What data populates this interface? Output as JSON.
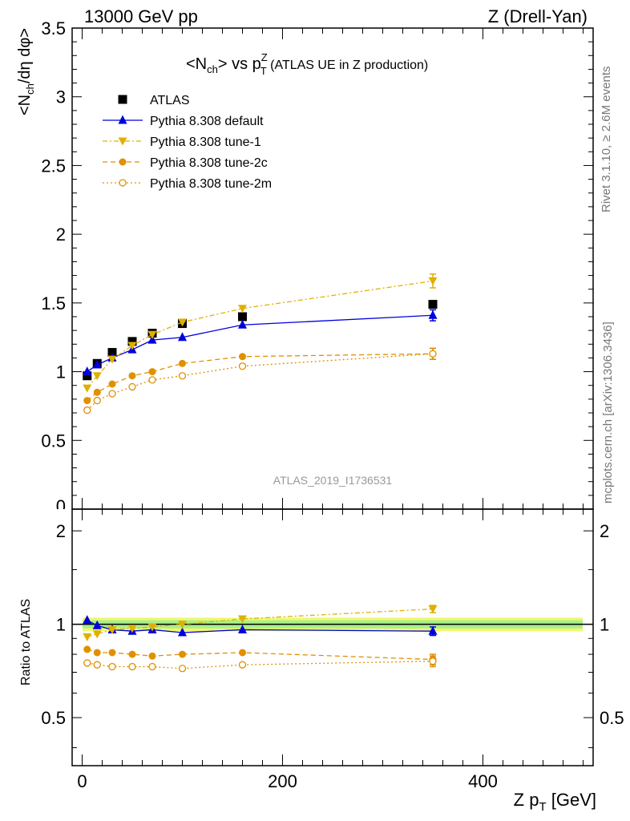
{
  "header": {
    "energy_label": "13000 GeV pp",
    "process_label": "Z (Drell-Yan)"
  },
  "side_labels": {
    "rivet": "Rivet 3.1.10, ≥ 2.6M events",
    "mcplots": "mcplots.cern.ch [arXiv:1306.3436]"
  },
  "watermark": "ATLAS_2019_I1736531",
  "chart_data": [
    {
      "type": "line",
      "title": "<Nch> vs pTZ (ATLAS UE in Z production)",
      "title_parts": {
        "a": "<N",
        "b": "ch",
        "c": "> vs p",
        "d": "Z",
        "e": "T",
        "f": " (ATLAS UE in Z production)"
      },
      "ylabel": "<Nch/dη dφ>",
      "ylabel_parts": {
        "a": "<N",
        "b": "ch",
        "c": "/dη dφ>"
      },
      "xlabel": "",
      "ylim": [
        0,
        3.5
      ],
      "xlim": [
        -10,
        510
      ],
      "yticks": [
        "0.5",
        "1",
        "1.5",
        "2",
        "2.5",
        "3",
        "3.5"
      ],
      "ytick_bottom_partial": "0",
      "x": [
        5,
        15,
        30,
        50,
        70,
        100,
        160,
        350
      ],
      "series": [
        {
          "name": "ATLAS",
          "values": [
            0.97,
            1.06,
            1.14,
            1.22,
            1.28,
            1.35,
            1.4,
            1.49
          ],
          "color": "#000000",
          "marker": "square",
          "dash": "none",
          "line": false
        },
        {
          "name": "Pythia 8.308 default",
          "values": [
            1.0,
            1.05,
            1.1,
            1.16,
            1.23,
            1.25,
            1.34,
            1.41
          ],
          "color": "#0000dd",
          "marker": "triangle-up",
          "dash": "none",
          "line": true,
          "err_last": 0.04
        },
        {
          "name": "Pythia 8.308 tune-1",
          "values": [
            0.88,
            0.97,
            1.09,
            1.19,
            1.27,
            1.36,
            1.46,
            1.66
          ],
          "color": "#e0b000",
          "marker": "triangle-down",
          "dash": "6,3,2,3",
          "line": true,
          "err_last": 0.05
        },
        {
          "name": "Pythia 8.308 tune-2c",
          "values": [
            0.79,
            0.85,
            0.91,
            0.97,
            1.0,
            1.06,
            1.11,
            1.13
          ],
          "color": "#e09000",
          "marker": "circle-filled",
          "dash": "6,4",
          "line": true,
          "err_last": 0.04
        },
        {
          "name": "Pythia 8.308 tune-2m",
          "values": [
            0.72,
            0.79,
            0.84,
            0.89,
            0.94,
            0.97,
            1.04,
            1.13
          ],
          "color": "#e09000",
          "marker": "circle-open",
          "dash": "2,3",
          "line": true,
          "err_last": 0.04
        }
      ]
    },
    {
      "type": "line",
      "title": "",
      "ylabel": "Ratio to ATLAS",
      "xlabel": "Z pT [GeV]",
      "xlabel_parts": {
        "a": "Z p",
        "b": "T",
        "c": " [GeV]"
      },
      "ylim": [
        0.35,
        2.35
      ],
      "xlim": [
        -10,
        510
      ],
      "yticks": [
        "0.5",
        "1",
        "2"
      ],
      "xticks": [
        "0",
        "200",
        "400"
      ],
      "x": [
        5,
        15,
        30,
        50,
        70,
        100,
        160,
        350
      ],
      "series": [
        {
          "name": "Pythia 8.308 default",
          "values": [
            1.03,
            0.99,
            0.96,
            0.95,
            0.96,
            0.94,
            0.96,
            0.95
          ],
          "color": "#0000dd",
          "marker": "triangle-up",
          "dash": "none",
          "err_last": 0.03
        },
        {
          "name": "Pythia 8.308 tune-1",
          "values": [
            0.91,
            0.93,
            0.96,
            0.97,
            0.98,
            1.0,
            1.04,
            1.12
          ],
          "color": "#e0b000",
          "marker": "triangle-down",
          "dash": "6,3,2,3",
          "err_last": 0.03
        },
        {
          "name": "Pythia 8.308 tune-2c",
          "values": [
            0.83,
            0.81,
            0.81,
            0.8,
            0.79,
            0.8,
            0.81,
            0.77
          ],
          "color": "#e09000",
          "marker": "circle-filled",
          "dash": "6,4",
          "err_last": 0.03
        },
        {
          "name": "Pythia 8.308 tune-2m",
          "values": [
            0.75,
            0.74,
            0.73,
            0.73,
            0.73,
            0.72,
            0.74,
            0.76
          ],
          "color": "#e09000",
          "marker": "circle-open",
          "dash": "2,3",
          "err_last": 0.03
        }
      ],
      "reference": {
        "value": 1.0,
        "band_inner": 0.03,
        "band_outer": 0.05
      }
    }
  ]
}
